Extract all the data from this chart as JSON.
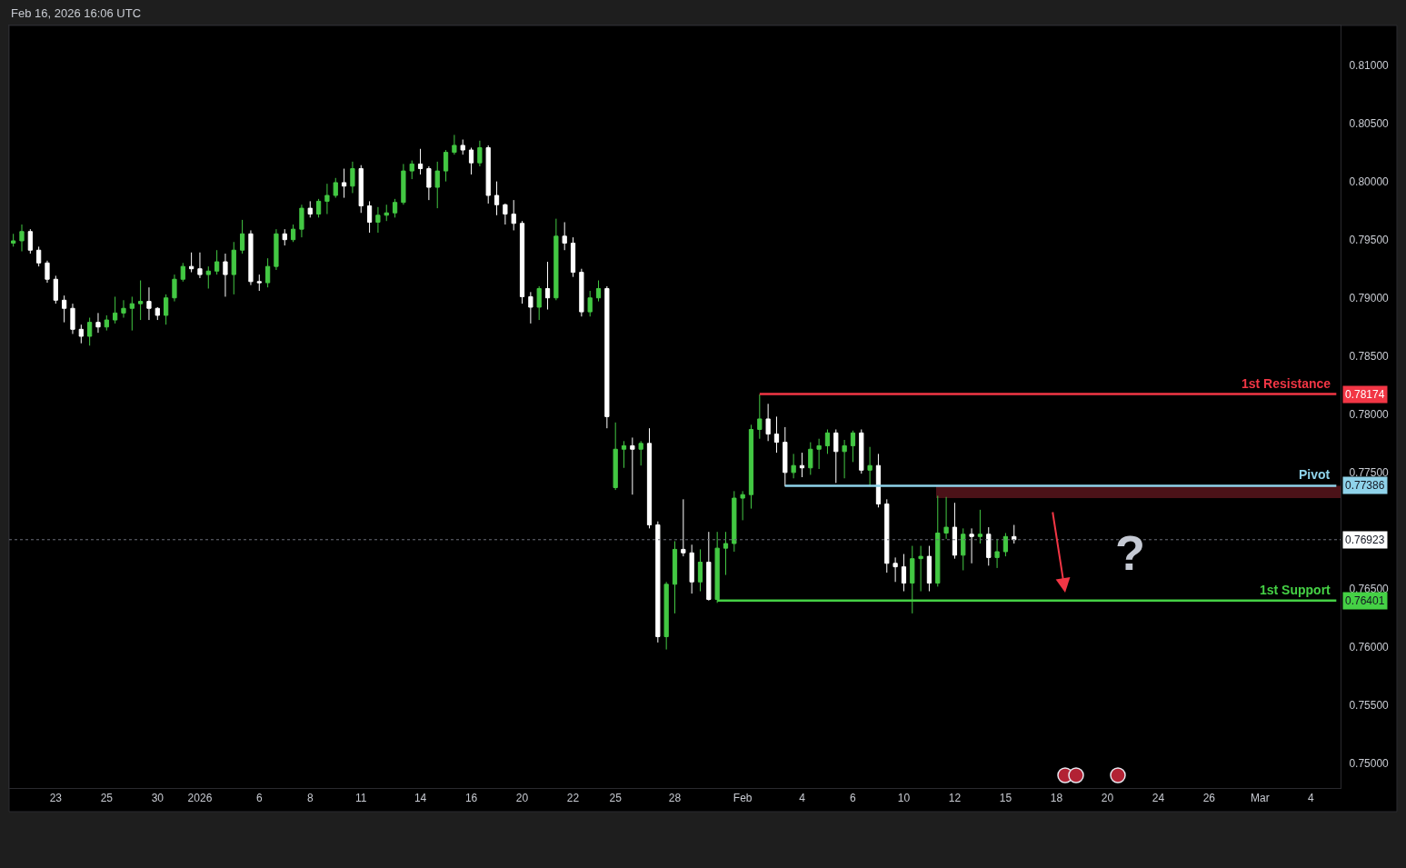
{
  "chart_data": {
    "type": "candlestick",
    "annotations": [
      "Feb 16, 2026 16:06 UTC",
      "?"
    ],
    "categories": [
      null,
      null,
      null,
      null,
      null,
      "23",
      null,
      null,
      null,
      null,
      null,
      "25",
      null,
      null,
      null,
      null,
      null,
      "30",
      null,
      null,
      null,
      null,
      "2026",
      null,
      null,
      null,
      null,
      null,
      null,
      "6",
      null,
      null,
      null,
      null,
      null,
      "8",
      null,
      null,
      null,
      null,
      null,
      "11",
      null,
      null,
      null,
      null,
      null,
      null,
      "14",
      null,
      null,
      null,
      null,
      null,
      "16",
      null,
      null,
      null,
      null,
      null,
      "20",
      null,
      null,
      null,
      null,
      null,
      "22",
      null,
      null,
      null,
      null,
      "25",
      null,
      null,
      null,
      null,
      null,
      null,
      "28",
      null,
      null,
      null,
      null,
      null,
      null,
      null,
      "Feb",
      null,
      null,
      null,
      null,
      null,
      null,
      "4",
      null,
      null,
      null,
      null,
      null,
      "6",
      null,
      null,
      null,
      null,
      null,
      "10",
      null,
      null,
      null,
      null,
      null,
      "12",
      null,
      null,
      null,
      null,
      null,
      "15",
      null,
      null,
      null,
      null,
      null,
      "18",
      null,
      null,
      null,
      null,
      null,
      "20",
      null,
      null,
      null,
      null,
      null,
      "24",
      null,
      null,
      null,
      null,
      null,
      "26",
      null,
      null,
      null,
      null,
      null,
      "Mar",
      null,
      null,
      null,
      null,
      null,
      "4",
      null,
      null,
      null
    ],
    "ohlc": [
      [
        0.7947,
        0.7955,
        0.7944,
        0.7949
      ],
      [
        0.7949,
        0.7963,
        0.794,
        0.7957
      ],
      [
        0.7957,
        0.7959,
        0.7938,
        0.7941
      ],
      [
        0.7941,
        0.7944,
        0.7927,
        0.793
      ],
      [
        0.793,
        0.7932,
        0.7913,
        0.7916
      ],
      [
        0.7916,
        0.7919,
        0.7895,
        0.7898
      ],
      [
        0.7898,
        0.7902,
        0.7879,
        0.7891
      ],
      [
        0.7891,
        0.7895,
        0.7869,
        0.7873
      ],
      [
        0.7873,
        0.7877,
        0.7861,
        0.7867
      ],
      [
        0.7867,
        0.7883,
        0.7859,
        0.7879
      ],
      [
        0.7879,
        0.7887,
        0.787,
        0.7875
      ],
      [
        0.7875,
        0.7885,
        0.7872,
        0.7881
      ],
      [
        0.7881,
        0.7901,
        0.7878,
        0.7887
      ],
      [
        0.7887,
        0.7898,
        0.7883,
        0.7891
      ],
      [
        0.7891,
        0.7901,
        0.7872,
        0.7895
      ],
      [
        0.7895,
        0.7915,
        0.7881,
        0.7897
      ],
      [
        0.7897,
        0.7909,
        0.7881,
        0.7891
      ],
      [
        0.7891,
        0.7892,
        0.7881,
        0.7885
      ],
      [
        0.7885,
        0.7903,
        0.7877,
        0.79
      ],
      [
        0.79,
        0.792,
        0.7897,
        0.7916
      ],
      [
        0.7916,
        0.793,
        0.7914,
        0.7927
      ],
      [
        0.7927,
        0.7939,
        0.7922,
        0.7925
      ],
      [
        0.7925,
        0.7939,
        0.7917,
        0.792
      ],
      [
        0.792,
        0.7927,
        0.7908,
        0.7923
      ],
      [
        0.7923,
        0.7941,
        0.792,
        0.7931
      ],
      [
        0.7931,
        0.7938,
        0.7901,
        0.792
      ],
      [
        0.792,
        0.7948,
        0.7903,
        0.7941
      ],
      [
        0.7941,
        0.7967,
        0.7938,
        0.7955
      ],
      [
        0.7955,
        0.7958,
        0.7911,
        0.7914
      ],
      [
        0.7914,
        0.792,
        0.7906,
        0.7913
      ],
      [
        0.7913,
        0.7934,
        0.7909,
        0.7927
      ],
      [
        0.7927,
        0.7959,
        0.7924,
        0.7955
      ],
      [
        0.7955,
        0.7959,
        0.7945,
        0.795
      ],
      [
        0.795,
        0.7963,
        0.7948,
        0.7959
      ],
      [
        0.7959,
        0.798,
        0.7952,
        0.7977
      ],
      [
        0.7977,
        0.7983,
        0.7969,
        0.7972
      ],
      [
        0.7972,
        0.7985,
        0.7969,
        0.7983
      ],
      [
        0.7983,
        0.7998,
        0.7972,
        0.7988
      ],
      [
        0.7988,
        0.8003,
        0.7986,
        0.7999
      ],
      [
        0.7999,
        0.8011,
        0.7986,
        0.7996
      ],
      [
        0.7996,
        0.8017,
        0.799,
        0.8011
      ],
      [
        0.8011,
        0.8014,
        0.7973,
        0.7979
      ],
      [
        0.7979,
        0.7983,
        0.7956,
        0.7965
      ],
      [
        0.7965,
        0.7978,
        0.7956,
        0.7971
      ],
      [
        0.7971,
        0.798,
        0.7966,
        0.7973
      ],
      [
        0.7973,
        0.7985,
        0.7969,
        0.7982
      ],
      [
        0.7982,
        0.8015,
        0.798,
        0.8009
      ],
      [
        0.8009,
        0.8018,
        0.8002,
        0.8015
      ],
      [
        0.8015,
        0.8028,
        0.8006,
        0.8011
      ],
      [
        0.8011,
        0.8013,
        0.7984,
        0.7995
      ],
      [
        0.7995,
        0.8017,
        0.7977,
        0.8009
      ],
      [
        0.8009,
        0.8027,
        0.8,
        0.8025
      ],
      [
        0.8025,
        0.804,
        0.8023,
        0.8031
      ],
      [
        0.8031,
        0.8036,
        0.8023,
        0.8027
      ],
      [
        0.8027,
        0.8029,
        0.8006,
        0.8016
      ],
      [
        0.8016,
        0.8035,
        0.8013,
        0.8029
      ],
      [
        0.8029,
        0.8031,
        0.7981,
        0.7988
      ],
      [
        0.7988,
        0.8,
        0.7971,
        0.798
      ],
      [
        0.798,
        0.7981,
        0.7963,
        0.7972
      ],
      [
        0.7972,
        0.7984,
        0.7958,
        0.7964
      ],
      [
        0.7964,
        0.7966,
        0.7895,
        0.7901
      ],
      [
        0.7901,
        0.7905,
        0.7878,
        0.7892
      ],
      [
        0.7892,
        0.791,
        0.7881,
        0.7908
      ],
      [
        0.7908,
        0.7931,
        0.789,
        0.79
      ],
      [
        0.79,
        0.7968,
        0.7898,
        0.7953
      ],
      [
        0.7953,
        0.7965,
        0.7941,
        0.7947
      ],
      [
        0.7947,
        0.7952,
        0.7918,
        0.7922
      ],
      [
        0.7922,
        0.7925,
        0.7884,
        0.7888
      ],
      [
        0.7888,
        0.7906,
        0.7884,
        0.79
      ],
      [
        0.79,
        0.7915,
        0.7897,
        0.7908
      ],
      [
        0.7908,
        0.791,
        0.7788,
        0.7798
      ],
      [
        0.7737,
        0.7793,
        0.7735,
        0.777
      ],
      [
        0.777,
        0.7777,
        0.7754,
        0.7773
      ],
      [
        0.7773,
        0.778,
        0.7731,
        0.777
      ],
      [
        0.777,
        0.7777,
        0.7756,
        0.7775
      ],
      [
        0.7775,
        0.7788,
        0.7702,
        0.7705
      ],
      [
        0.7705,
        0.7708,
        0.7604,
        0.7609
      ],
      [
        0.7609,
        0.7656,
        0.7598,
        0.7654
      ],
      [
        0.7654,
        0.7691,
        0.7629,
        0.7684
      ],
      [
        0.7684,
        0.7727,
        0.7678,
        0.7681
      ],
      [
        0.7681,
        0.7688,
        0.7646,
        0.7656
      ],
      [
        0.7656,
        0.7684,
        0.7648,
        0.7673
      ],
      [
        0.7673,
        0.7699,
        0.764,
        0.7641
      ],
      [
        0.7641,
        0.7699,
        0.7638,
        0.7685
      ],
      [
        0.7685,
        0.7699,
        0.7662,
        0.7689
      ],
      [
        0.7689,
        0.7734,
        0.7682,
        0.7728
      ],
      [
        0.7728,
        0.7734,
        0.7709,
        0.7731
      ],
      [
        0.7731,
        0.7791,
        0.7719,
        0.7787
      ],
      [
        0.7787,
        0.7817,
        0.7779,
        0.7796
      ],
      [
        0.7796,
        0.7809,
        0.7777,
        0.7783
      ],
      [
        0.7783,
        0.7798,
        0.7767,
        0.7776
      ],
      [
        0.7776,
        0.7789,
        0.7738,
        0.775
      ],
      [
        0.775,
        0.7766,
        0.7745,
        0.7756
      ],
      [
        0.7756,
        0.7767,
        0.7746,
        0.7754
      ],
      [
        0.7754,
        0.7776,
        0.7748,
        0.777
      ],
      [
        0.777,
        0.7779,
        0.7753,
        0.7773
      ],
      [
        0.7773,
        0.7787,
        0.7766,
        0.7784
      ],
      [
        0.7784,
        0.7787,
        0.7741,
        0.7768
      ],
      [
        0.7768,
        0.7778,
        0.7745,
        0.7773
      ],
      [
        0.7773,
        0.7786,
        0.7759,
        0.7784
      ],
      [
        0.7784,
        0.7787,
        0.7749,
        0.7752
      ],
      [
        0.7752,
        0.7772,
        0.7738,
        0.7756
      ],
      [
        0.7756,
        0.7766,
        0.772,
        0.7723
      ],
      [
        0.7723,
        0.7727,
        0.7664,
        0.7672
      ],
      [
        0.7672,
        0.7677,
        0.7656,
        0.7669
      ],
      [
        0.7669,
        0.768,
        0.7648,
        0.7655
      ],
      [
        0.7655,
        0.7687,
        0.7629,
        0.7676
      ],
      [
        0.7676,
        0.7687,
        0.7648,
        0.7678
      ],
      [
        0.7678,
        0.7687,
        0.7648,
        0.7655
      ],
      [
        0.7655,
        0.773,
        0.7652,
        0.7698
      ],
      [
        0.7698,
        0.7729,
        0.7693,
        0.7703
      ],
      [
        0.7703,
        0.7724,
        0.7676,
        0.7679
      ],
      [
        0.7679,
        0.7702,
        0.7666,
        0.7697
      ],
      [
        0.7697,
        0.7702,
        0.7672,
        0.7695
      ],
      [
        0.7695,
        0.7718,
        0.7689,
        0.7697
      ],
      [
        0.7697,
        0.7703,
        0.767,
        0.7677
      ],
      [
        0.7677,
        0.7693,
        0.7668,
        0.7682
      ],
      [
        0.7682,
        0.7698,
        0.7678,
        0.7695
      ],
      [
        0.7695,
        0.7705,
        0.7689,
        0.76923
      ],
      null,
      null,
      null,
      null,
      null,
      null,
      null,
      null,
      null,
      null,
      null,
      null,
      null,
      null,
      null,
      null,
      null,
      null,
      null,
      null,
      null,
      null,
      null,
      null,
      null,
      null,
      null,
      null,
      null,
      null,
      null,
      null,
      null,
      null,
      null,
      null,
      null,
      null
    ],
    "colors": [
      "#43c843",
      "#43c843",
      "#ffffff",
      "#ffffff",
      "#ffffff",
      "#ffffff",
      "#ffffff",
      "#ffffff",
      "#ffffff",
      "#43c843",
      "#ffffff",
      "#43c843",
      "#43c843",
      "#43c843",
      "#43c843",
      "#43c843",
      "#ffffff",
      "#ffffff",
      "#43c843",
      "#43c843",
      "#43c843",
      "#ffffff",
      "#ffffff",
      "#43c843",
      "#43c843",
      "#ffffff",
      "#43c843",
      "#43c843",
      "#ffffff",
      "#ffffff",
      "#43c843",
      "#43c843",
      "#ffffff",
      "#43c843",
      "#43c843",
      "#ffffff",
      "#43c843",
      "#43c843",
      "#43c843",
      "#ffffff",
      "#43c843",
      "#ffffff",
      "#ffffff",
      "#43c843",
      "#43c843",
      "#43c843",
      "#43c843",
      "#43c843",
      "#ffffff",
      "#ffffff",
      "#43c843",
      "#43c843",
      "#43c843",
      "#ffffff",
      "#ffffff",
      "#43c843",
      "#ffffff",
      "#ffffff",
      "#ffffff",
      "#ffffff",
      "#ffffff",
      "#ffffff",
      "#43c843",
      "#ffffff",
      "#43c843",
      "#ffffff",
      "#ffffff",
      "#ffffff",
      "#43c843",
      "#43c843",
      "#ffffff",
      "#43c843",
      "#43c843",
      "#ffffff",
      "#43c843",
      "#ffffff",
      "#ffffff",
      "#43c843",
      "#43c843",
      "#ffffff",
      "#ffffff",
      "#43c843",
      "#ffffff",
      "#43c843",
      "#43c843",
      "#43c843",
      "#43c843",
      "#43c843",
      "#43c843",
      "#ffffff",
      "#ffffff",
      "#ffffff",
      "#43c843",
      "#ffffff",
      "#43c843",
      "#43c843",
      "#43c843",
      "#ffffff",
      "#43c843",
      "#43c843",
      "#ffffff",
      "#43c843",
      "#ffffff",
      "#ffffff",
      "#ffffff",
      "#ffffff",
      "#43c843",
      "#43c843",
      "#ffffff",
      "#43c843",
      "#43c843",
      "#ffffff",
      "#43c843",
      "#ffffff",
      "#43c843",
      "#ffffff",
      "#43c843",
      "#43c843",
      "#ffffff",
      null,
      null,
      null,
      null,
      null,
      null,
      null,
      null,
      null,
      null,
      null,
      null,
      null,
      null,
      null,
      null,
      null,
      null,
      null,
      null,
      null,
      null,
      null,
      null,
      null,
      null,
      null,
      null,
      null,
      null,
      null,
      null,
      null,
      null,
      null,
      null,
      null,
      null
    ],
    "series": [
      {
        "type": "line",
        "name": "1st Resistance",
        "color": "#f23645",
        "values": [
          null,
          null,
          null,
          null,
          null,
          null,
          null,
          null,
          null,
          null,
          null,
          null,
          null,
          null,
          null,
          null,
          null,
          null,
          null,
          null,
          null,
          null,
          null,
          null,
          null,
          null,
          null,
          null,
          null,
          null,
          null,
          null,
          null,
          null,
          null,
          null,
          null,
          null,
          null,
          null,
          null,
          null,
          null,
          null,
          null,
          null,
          null,
          null,
          null,
          null,
          null,
          null,
          null,
          null,
          null,
          null,
          null,
          null,
          null,
          null,
          null,
          null,
          null,
          null,
          null,
          null,
          null,
          null,
          null,
          null,
          null,
          null,
          null,
          null,
          null,
          null,
          null,
          null,
          null,
          null,
          null,
          null,
          null,
          null,
          null,
          null,
          null,
          null,
          0.78174,
          0.78174,
          0.78174,
          0.78174,
          0.78174,
          0.78174,
          0.78174,
          0.78174,
          0.78174,
          0.78174,
          0.78174,
          0.78174,
          0.78174,
          0.78174,
          0.78174,
          0.78174,
          0.78174,
          0.78174,
          0.78174,
          0.78174,
          0.78174,
          0.78174,
          0.78174,
          0.78174,
          0.78174,
          0.78174,
          0.78174,
          0.78174,
          0.78174,
          0.78174,
          0.78174,
          0.78174,
          0.78174,
          0.78174,
          0.78174,
          0.78174,
          0.78174,
          0.78174,
          0.78174,
          0.78174,
          0.78174,
          0.78174,
          0.78174,
          0.78174,
          0.78174,
          0.78174,
          0.78174,
          0.78174,
          0.78174,
          0.78174,
          0.78174,
          0.78174,
          0.78174,
          0.78174,
          0.78174,
          0.78174,
          0.78174,
          0.78174,
          0.78174,
          0.78174,
          0.78174,
          0.78174,
          0.78174,
          0.78174,
          0.78174,
          0.78174,
          0.78174,
          0.78174,
          0.78174
        ],
        "value_labels": [
          null,
          null,
          null,
          null,
          null,
          null,
          null,
          null,
          null,
          null,
          null,
          null,
          null,
          null,
          null,
          null,
          null,
          null,
          null,
          null,
          null,
          null,
          null,
          null,
          null,
          null,
          null,
          null,
          null,
          null,
          null,
          null,
          null,
          null,
          null,
          null,
          null,
          null,
          null,
          null,
          null,
          null,
          null,
          null,
          null,
          null,
          null,
          null,
          null,
          null,
          null,
          null,
          null,
          null,
          null,
          null,
          null,
          null,
          null,
          null,
          null,
          null,
          null,
          null,
          null,
          null,
          null,
          null,
          null,
          null,
          null,
          null,
          null,
          null,
          null,
          null,
          null,
          null,
          null,
          null,
          null,
          null,
          null,
          null,
          null,
          null,
          null,
          null,
          null,
          null,
          null,
          null,
          null,
          null,
          null,
          null,
          null,
          null,
          null,
          null,
          null,
          null,
          null,
          null,
          null,
          null,
          null,
          null,
          null,
          null,
          null,
          null,
          null,
          null,
          null,
          null,
          null,
          null,
          null,
          null,
          null,
          null,
          null,
          null,
          null,
          null,
          null,
          null,
          null,
          null,
          null,
          null,
          null,
          null,
          null,
          null,
          null,
          null,
          null,
          null,
          null,
          null,
          null,
          null,
          null,
          null,
          null,
          null,
          null,
          null,
          null,
          null,
          null,
          null,
          null,
          null,
          "0.78174"
        ]
      },
      {
        "type": "line",
        "name": "Pivot",
        "color": "#8fd3ea",
        "values": [
          null,
          null,
          null,
          null,
          null,
          null,
          null,
          null,
          null,
          null,
          null,
          null,
          null,
          null,
          null,
          null,
          null,
          null,
          null,
          null,
          null,
          null,
          null,
          null,
          null,
          null,
          null,
          null,
          null,
          null,
          null,
          null,
          null,
          null,
          null,
          null,
          null,
          null,
          null,
          null,
          null,
          null,
          null,
          null,
          null,
          null,
          null,
          null,
          null,
          null,
          null,
          null,
          null,
          null,
          null,
          null,
          null,
          null,
          null,
          null,
          null,
          null,
          null,
          null,
          null,
          null,
          null,
          null,
          null,
          null,
          null,
          null,
          null,
          null,
          null,
          null,
          null,
          null,
          null,
          null,
          null,
          null,
          null,
          null,
          null,
          null,
          null,
          null,
          null,
          null,
          null,
          0.77386,
          0.77386,
          0.77386,
          0.77386,
          0.77386,
          0.77386,
          0.77386,
          0.77386,
          0.77386,
          0.77386,
          0.77386,
          0.77386,
          0.77386,
          0.77386,
          0.77386,
          0.77386,
          0.77386,
          0.77386,
          0.77386,
          0.77386,
          0.77386,
          0.77386,
          0.77386,
          0.77386,
          0.77386,
          0.77386,
          0.77386,
          0.77386,
          0.77386,
          0.77386,
          0.77386,
          0.77386,
          0.77386,
          0.77386,
          0.77386,
          0.77386,
          0.77386,
          0.77386,
          0.77386,
          0.77386,
          0.77386,
          0.77386,
          0.77386,
          0.77386,
          0.77386,
          0.77386,
          0.77386,
          0.77386,
          0.77386,
          0.77386,
          0.77386,
          0.77386,
          0.77386,
          0.77386,
          0.77386,
          0.77386,
          0.77386,
          0.77386,
          0.77386,
          0.77386,
          0.77386,
          0.77386,
          0.77386,
          0.77386,
          0.77386,
          0.77386
        ],
        "value_labels": [
          null,
          null,
          null,
          null,
          null,
          null,
          null,
          null,
          null,
          null,
          null,
          null,
          null,
          null,
          null,
          null,
          null,
          null,
          null,
          null,
          null,
          null,
          null,
          null,
          null,
          null,
          null,
          null,
          null,
          null,
          null,
          null,
          null,
          null,
          null,
          null,
          null,
          null,
          null,
          null,
          null,
          null,
          null,
          null,
          null,
          null,
          null,
          null,
          null,
          null,
          null,
          null,
          null,
          null,
          null,
          null,
          null,
          null,
          null,
          null,
          null,
          null,
          null,
          null,
          null,
          null,
          null,
          null,
          null,
          null,
          null,
          null,
          null,
          null,
          null,
          null,
          null,
          null,
          null,
          null,
          null,
          null,
          null,
          null,
          null,
          null,
          null,
          null,
          null,
          null,
          null,
          null,
          null,
          null,
          null,
          null,
          null,
          null,
          null,
          null,
          null,
          null,
          null,
          null,
          null,
          null,
          null,
          null,
          null,
          null,
          null,
          null,
          null,
          null,
          null,
          null,
          null,
          null,
          null,
          null,
          null,
          null,
          null,
          null,
          null,
          null,
          null,
          null,
          null,
          null,
          null,
          null,
          null,
          null,
          null,
          null,
          null,
          null,
          null,
          null,
          null,
          null,
          null,
          null,
          null,
          null,
          null,
          null,
          null,
          null,
          null,
          null,
          null,
          null,
          null,
          null,
          "0.77386"
        ]
      },
      {
        "type": "line",
        "name": "1st Support",
        "color": "#45d145",
        "values": [
          null,
          null,
          null,
          null,
          null,
          null,
          null,
          null,
          null,
          null,
          null,
          null,
          null,
          null,
          null,
          null,
          null,
          null,
          null,
          null,
          null,
          null,
          null,
          null,
          null,
          null,
          null,
          null,
          null,
          null,
          null,
          null,
          null,
          null,
          null,
          null,
          null,
          null,
          null,
          null,
          null,
          null,
          null,
          null,
          null,
          null,
          null,
          null,
          null,
          null,
          null,
          null,
          null,
          null,
          null,
          null,
          null,
          null,
          null,
          null,
          null,
          null,
          null,
          null,
          null,
          null,
          null,
          null,
          null,
          null,
          null,
          null,
          null,
          null,
          null,
          null,
          null,
          null,
          null,
          null,
          null,
          null,
          null,
          0.76401,
          0.76401,
          0.76401,
          0.76401,
          0.76401,
          0.76401,
          0.76401,
          0.76401,
          0.76401,
          0.76401,
          0.76401,
          0.76401,
          0.76401,
          0.76401,
          0.76401,
          0.76401,
          0.76401,
          0.76401,
          0.76401,
          0.76401,
          0.76401,
          0.76401,
          0.76401,
          0.76401,
          0.76401,
          0.76401,
          0.76401,
          0.76401,
          0.76401,
          0.76401,
          0.76401,
          0.76401,
          0.76401,
          0.76401,
          0.76401,
          0.76401,
          0.76401,
          0.76401,
          0.76401,
          0.76401,
          0.76401,
          0.76401,
          0.76401,
          0.76401,
          0.76401,
          0.76401,
          0.76401,
          0.76401,
          0.76401,
          0.76401,
          0.76401,
          0.76401,
          0.76401,
          0.76401,
          0.76401,
          0.76401,
          0.76401,
          0.76401,
          0.76401,
          0.76401,
          0.76401,
          0.76401,
          0.76401,
          0.76401,
          0.76401,
          0.76401,
          0.76401,
          0.76401,
          0.76401,
          0.76401,
          0.76401,
          0.76401,
          0.76401,
          0.76401
        ],
        "value_labels": [
          null,
          null,
          null,
          null,
          null,
          null,
          null,
          null,
          null,
          null,
          null,
          null,
          null,
          null,
          null,
          null,
          null,
          null,
          null,
          null,
          null,
          null,
          null,
          null,
          null,
          null,
          null,
          null,
          null,
          null,
          null,
          null,
          null,
          null,
          null,
          null,
          null,
          null,
          null,
          null,
          null,
          null,
          null,
          null,
          null,
          null,
          null,
          null,
          null,
          null,
          null,
          null,
          null,
          null,
          null,
          null,
          null,
          null,
          null,
          null,
          null,
          null,
          null,
          null,
          null,
          null,
          null,
          null,
          null,
          null,
          null,
          null,
          null,
          null,
          null,
          null,
          null,
          null,
          null,
          null,
          null,
          null,
          null,
          null,
          null,
          null,
          null,
          null,
          null,
          null,
          null,
          null,
          null,
          null,
          null,
          null,
          null,
          null,
          null,
          null,
          null,
          null,
          null,
          null,
          null,
          null,
          null,
          null,
          null,
          null,
          null,
          null,
          null,
          null,
          null,
          null,
          null,
          null,
          null,
          null,
          null,
          null,
          null,
          null,
          null,
          null,
          null,
          null,
          null,
          null,
          null,
          null,
          null,
          null,
          null,
          null,
          null,
          null,
          null,
          null,
          null,
          null,
          null,
          null,
          null,
          null,
          null,
          null,
          null,
          null,
          null,
          null,
          null,
          null,
          null,
          null,
          "0.76401"
        ]
      }
    ],
    "bands": [
      {
        "axis": "y",
        "from": 0.7728,
        "to": 0.77386,
        "color": "#4b1218"
      }
    ],
    "ref_lines": [
      {
        "axis": "y",
        "value": 0.76923,
        "label": "0.76923",
        "color": "#6a6d78",
        "line_style": "dotted"
      }
    ],
    "ylim": [
      0.7479,
      0.8134
    ],
    "yticks": [
      {
        "value": 0.75,
        "label": "0.75000"
      },
      {
        "value": 0.755,
        "label": "0.75500"
      },
      {
        "value": 0.76,
        "label": "0.76000"
      },
      {
        "value": 0.765,
        "label": "0.76500"
      },
      {
        "value": 0.775,
        "label": "0.77500"
      },
      {
        "value": 0.78,
        "label": "0.78000"
      },
      {
        "value": 0.785,
        "label": "0.78500"
      },
      {
        "value": 0.79,
        "label": "0.79000"
      },
      {
        "value": 0.795,
        "label": "0.79500"
      },
      {
        "value": 0.8,
        "label": "0.80000"
      },
      {
        "value": 0.805,
        "label": "0.80500"
      },
      {
        "value": 0.81,
        "label": "0.81000"
      }
    ]
  }
}
